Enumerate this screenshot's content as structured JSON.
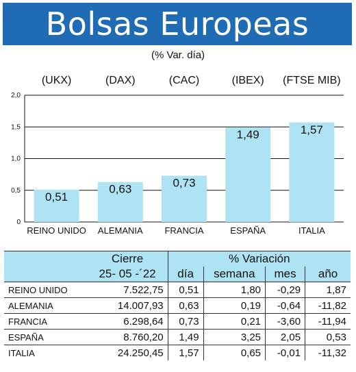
{
  "title": "Bolsas Europeas",
  "subtitle": "(% Var. día)",
  "chart_data": {
    "type": "bar",
    "categories": [
      "REINO UNIDO",
      "ALEMANIA",
      "FRANCIA",
      "ESPAÑA",
      "ITALIA"
    ],
    "index_labels": [
      "(UKX)",
      "(DAX)",
      "(CAC)",
      "(IBEX)",
      "(FTSE MIB)"
    ],
    "values": [
      0.51,
      0.63,
      0.73,
      1.49,
      1.57
    ],
    "value_labels": [
      "0,51",
      "0,63",
      "0,73",
      "1,49",
      "1,57"
    ],
    "yticks": [
      "0",
      "0,5",
      "1,0",
      "1,5",
      "2,0"
    ],
    "ylim": [
      0,
      2.0
    ],
    "grid": true,
    "bar_color": "#aee3f4"
  },
  "table": {
    "header_cierre": "Cierre",
    "header_variacion": "% Variación",
    "date": "25- 05 -´22",
    "col_dia": "día",
    "col_semana": "semana",
    "col_mes": "mes",
    "col_ano": "año",
    "rows": [
      {
        "name": "REINO UNIDO",
        "cierre": "7.522,75",
        "dia": "0,51",
        "semana": "1,80",
        "mes": "-0,29",
        "ano": "1,87"
      },
      {
        "name": "ALEMANIA",
        "cierre": "14.007,93",
        "dia": "0,63",
        "semana": "0,19",
        "mes": "-0,64",
        "ano": "-11,82"
      },
      {
        "name": "FRANCIA",
        "cierre": "6.298,64",
        "dia": "0,73",
        "semana": "0,21",
        "mes": "-3,60",
        "ano": "-11,94"
      },
      {
        "name": "ESPAÑA",
        "cierre": "8.760,20",
        "dia": "1,49",
        "semana": "3,25",
        "mes": "2,05",
        "ano": "0,53"
      },
      {
        "name": "ITALIA",
        "cierre": "24.250,45",
        "dia": "1,57",
        "semana": "0,65",
        "mes": "-0,01",
        "ano": "-11,32"
      }
    ]
  }
}
